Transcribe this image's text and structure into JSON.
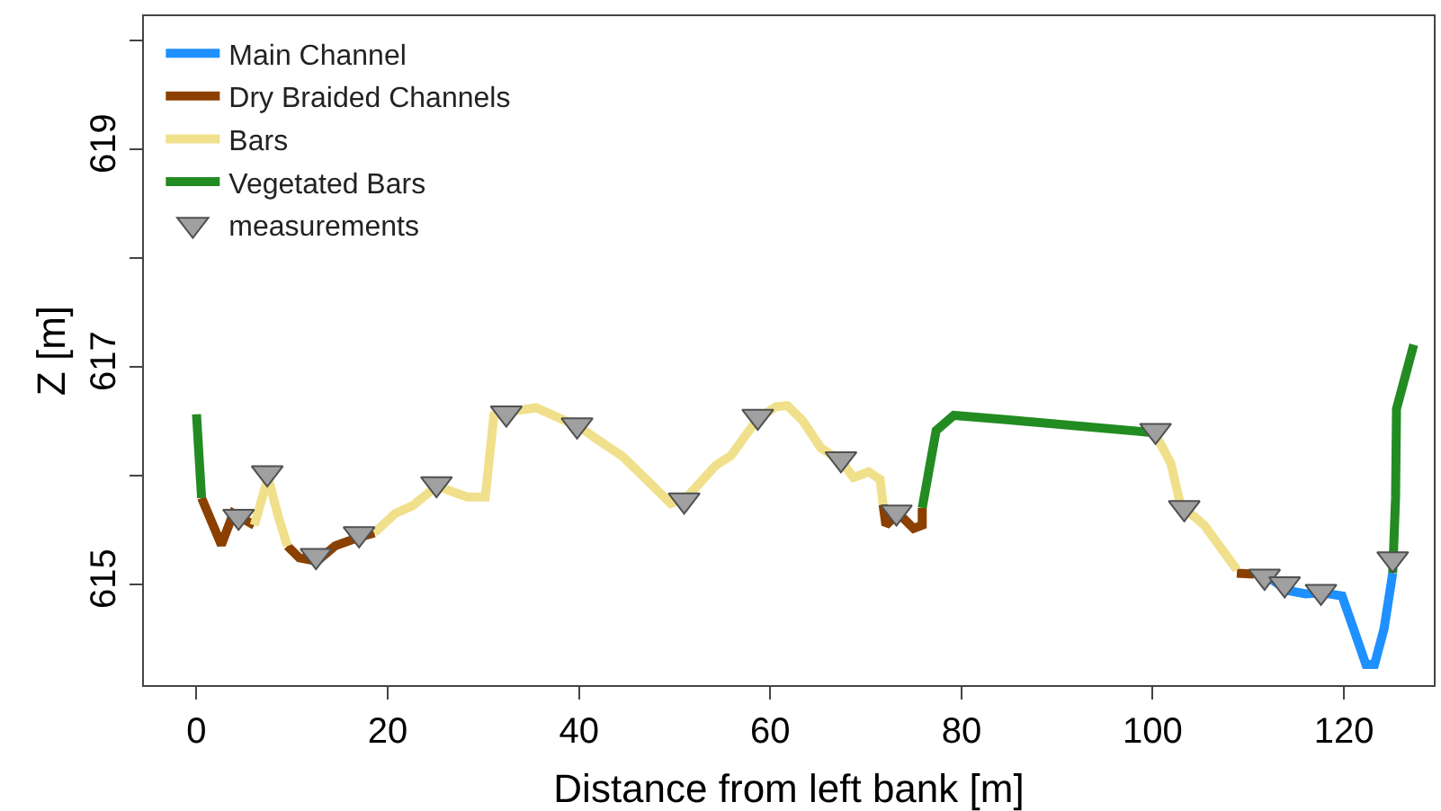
{
  "chart_data": {
    "type": "line",
    "xlabel": "Distance from left bank [m]",
    "ylabel": "Z [m]",
    "xlim": [
      -5.5,
      129.4
    ],
    "xticks": [
      0,
      20,
      40,
      60,
      80,
      100,
      120
    ],
    "ylim": [
      614.07,
      620.22
    ],
    "yticks": [
      {
        "value": 615,
        "label": "615"
      },
      {
        "value": 616,
        "label": null
      },
      {
        "value": 617,
        "label": "617"
      },
      {
        "value": 618,
        "label": null
      },
      {
        "value": 619,
        "label": "619"
      },
      {
        "value": 620,
        "label": null
      }
    ],
    "legend": "top left",
    "line_style": "solid",
    "series": [
      {
        "name": "Main Channel",
        "color": "#1e90ff",
        "marker": "none",
        "x": [
          112.3,
          114.1,
          116.0,
          117.6,
          119.8,
          121.0,
          122.3,
          123.2,
          124.2,
          125.1
        ],
        "values": [
          615.05,
          614.94,
          614.91,
          614.92,
          614.89,
          614.59,
          614.26,
          614.26,
          614.59,
          615.1
        ]
      },
      {
        "name": "Dry Braided Channels",
        "color": "#8b4000",
        "marker": "none",
        "x": [
          0.53,
          2.6,
          3.85,
          6.05,
          null,
          9.5,
          10.75,
          12.6,
          14.5,
          17.0,
          18.6,
          null,
          71.8,
          72.1,
          73.4,
          75.0,
          75.9,
          75.9,
          null,
          108.8,
          110.6
        ],
        "values": [
          615.79,
          615.36,
          615.65,
          615.54,
          null,
          615.35,
          615.24,
          615.21,
          615.35,
          615.43,
          615.47,
          null,
          615.73,
          615.54,
          615.65,
          615.51,
          615.54,
          615.7,
          null,
          615.1,
          615.09
        ]
      },
      {
        "name": "Bars",
        "color": "#f0e08c",
        "marker": "none",
        "x": [
          6.05,
          7.48,
          8.55,
          9.5,
          null,
          18.6,
          20.8,
          22.6,
          25.15,
          28.3,
          30.2,
          31.1,
          32.4,
          35.5,
          39.9,
          44.6,
          49.6,
          51.2,
          54.3,
          55.9,
          58.7,
          60.6,
          61.8,
          63.4,
          65.3,
          67.4,
          68.7,
          70.3,
          71.5,
          71.8,
          null,
          100.2,
          101.9,
          102.9,
          105.4,
          108.8
        ],
        "values": [
          615.54,
          615.98,
          615.62,
          615.35,
          null,
          615.47,
          615.65,
          615.72,
          615.9,
          615.8,
          615.8,
          616.55,
          616.58,
          616.62,
          616.45,
          616.17,
          615.74,
          615.79,
          616.09,
          616.18,
          616.52,
          616.63,
          616.64,
          616.5,
          616.25,
          616.13,
          615.98,
          616.03,
          615.96,
          615.73,
          null,
          616.39,
          616.11,
          615.73,
          615.54,
          615.13
        ]
      },
      {
        "name": "Vegetated Bars",
        "color": "#228b22",
        "marker": "none",
        "x": [
          0,
          0.53,
          null,
          75.9,
          77.35,
          79.2,
          84.7,
          100.2,
          null,
          125.1,
          125.4,
          125.5,
          127.3
        ],
        "values": [
          616.56,
          615.79,
          null,
          615.7,
          616.41,
          616.55,
          616.51,
          616.39,
          null,
          615.1,
          615.79,
          616.61,
          617.2
        ]
      },
      {
        "name": "measurements",
        "color": "#a0a0a0",
        "type": "scatter",
        "marker": "triangle",
        "x": [
          4.4,
          7.4,
          12.5,
          17.0,
          25.1,
          32.4,
          39.8,
          51.0,
          58.7,
          67.4,
          73.2,
          100.3,
          103.3,
          111.7,
          113.8,
          117.6,
          125.1
        ],
        "values": [
          615.62,
          616.02,
          615.26,
          615.46,
          615.92,
          616.57,
          616.46,
          615.77,
          616.54,
          616.15,
          615.66,
          616.41,
          615.7,
          615.07,
          615.0,
          614.93,
          615.23
        ]
      }
    ]
  }
}
